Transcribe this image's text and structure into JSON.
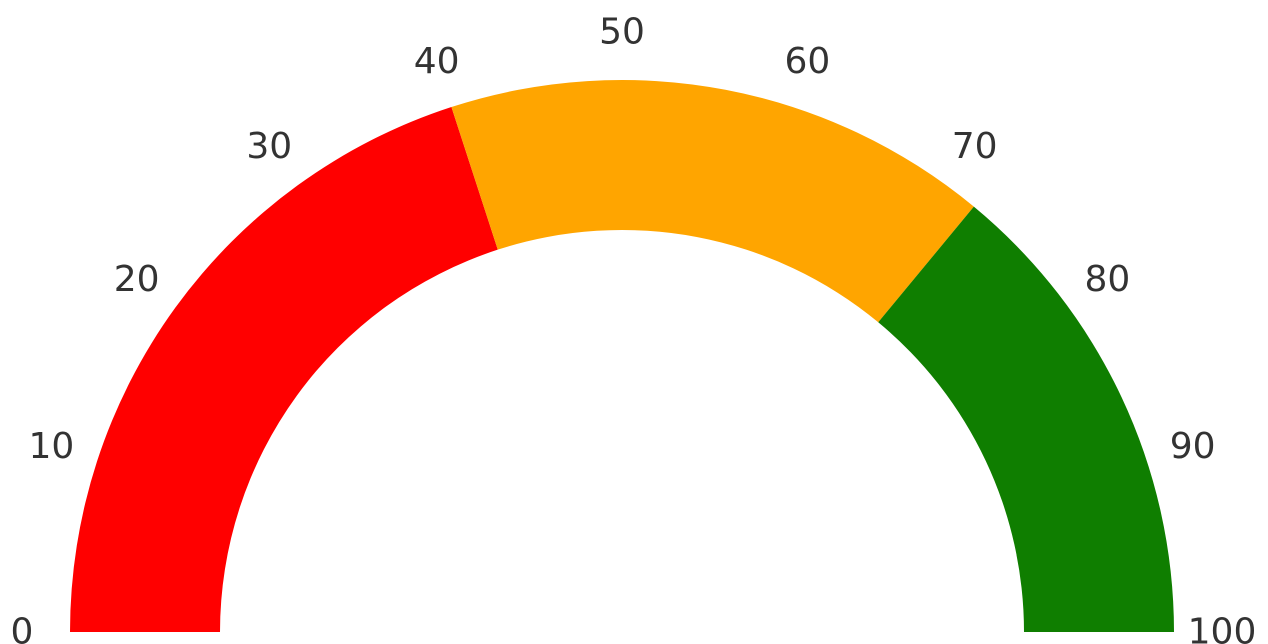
{
  "chart_data": {
    "type": "gauge",
    "range": [
      0,
      100
    ],
    "ticks": [
      "0",
      "10",
      "20",
      "30",
      "40",
      "50",
      "60",
      "70",
      "80",
      "90",
      "100"
    ],
    "bands": [
      {
        "from": 0,
        "to": 40,
        "color": "#ff0000"
      },
      {
        "from": 40,
        "to": 72,
        "color": "#ffa500"
      },
      {
        "from": 72,
        "to": 100,
        "color": "#0f7e00"
      }
    ]
  }
}
